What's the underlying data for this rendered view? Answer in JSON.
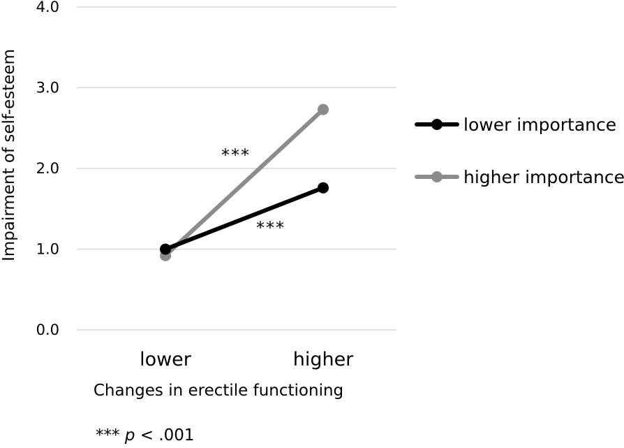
{
  "chart_data": {
    "type": "line",
    "categories": [
      "lower",
      "higher"
    ],
    "series": [
      {
        "name": "lower importance",
        "values": [
          1.0,
          1.76
        ],
        "color": "#000000"
      },
      {
        "name": "higher importance",
        "values": [
          0.92,
          2.73
        ],
        "color": "#8c8c8c"
      }
    ],
    "xlabel": "Changes in erectile functioning",
    "ylabel": "Impairment of self-esteem",
    "ylim": [
      0,
      4
    ],
    "yticks": [
      "0.0",
      "1.0",
      "2.0",
      "3.0",
      "4.0"
    ],
    "grid": true,
    "legend_position": "right",
    "annotations": [
      {
        "text": "***",
        "series": "higher importance"
      },
      {
        "text": "***",
        "series": "lower importance"
      }
    ]
  },
  "footnote": {
    "stars": "***",
    "p_symbol": "p",
    "rest": "< .001"
  }
}
